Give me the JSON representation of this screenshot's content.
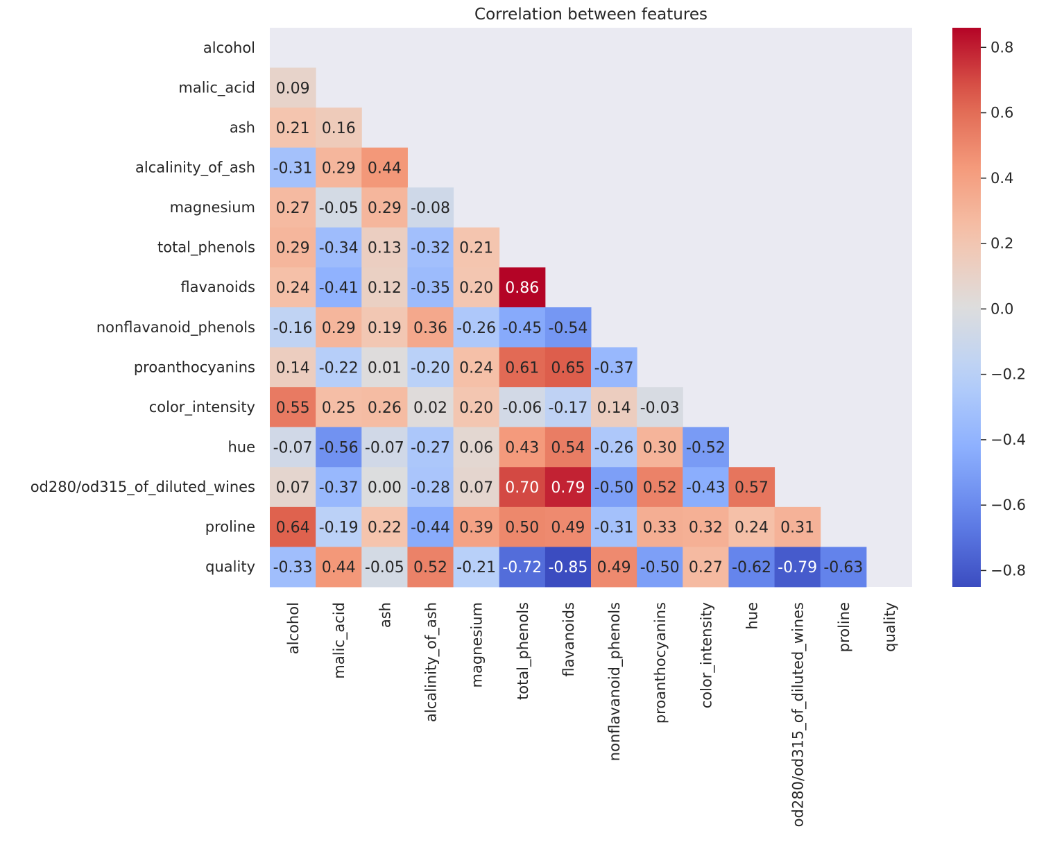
{
  "chart_data": {
    "type": "heatmap",
    "title": "Correlation between features",
    "xlabel": "",
    "ylabel": "",
    "mask": "upper-triangle-including-diagonal",
    "annotated": true,
    "value_format": "2 decimals",
    "colormap": "coolwarm",
    "color_range": [
      -0.85,
      0.86
    ],
    "background_color": "#eaeaf2",
    "colorbar": {
      "placement": "right",
      "ticks": [
        0.8,
        0.6,
        0.4,
        0.2,
        0.0,
        -0.2,
        -0.4,
        -0.6,
        -0.8
      ],
      "tick_labels": [
        "0.8",
        "0.6",
        "0.4",
        "0.2",
        "0.0",
        "−0.2",
        "−0.4",
        "−0.6",
        "−0.8"
      ]
    },
    "labels": [
      "alcohol",
      "malic_acid",
      "ash",
      "alcalinity_of_ash",
      "magnesium",
      "total_phenols",
      "flavanoids",
      "nonflavanoid_phenols",
      "proanthocyanins",
      "color_intensity",
      "hue",
      "od280/od315_of_diluted_wines",
      "proline",
      "quality"
    ],
    "rows": [
      [],
      [
        0.09
      ],
      [
        0.21,
        0.16
      ],
      [
        -0.31,
        0.29,
        0.44
      ],
      [
        0.27,
        -0.05,
        0.29,
        -0.08
      ],
      [
        0.29,
        -0.34,
        0.13,
        -0.32,
        0.21
      ],
      [
        0.24,
        -0.41,
        0.12,
        -0.35,
        0.2,
        0.86
      ],
      [
        -0.16,
        0.29,
        0.19,
        0.36,
        -0.26,
        -0.45,
        -0.54
      ],
      [
        0.14,
        -0.22,
        0.01,
        -0.2,
        0.24,
        0.61,
        0.65,
        -0.37
      ],
      [
        0.55,
        0.25,
        0.26,
        0.02,
        0.2,
        -0.06,
        -0.17,
        0.14,
        -0.03
      ],
      [
        -0.07,
        -0.56,
        -0.07,
        -0.27,
        0.06,
        0.43,
        0.54,
        -0.26,
        0.3,
        -0.52
      ],
      [
        0.07,
        -0.37,
        0.0,
        -0.28,
        0.07,
        0.7,
        0.79,
        -0.5,
        0.52,
        -0.43,
        0.57
      ],
      [
        0.64,
        -0.19,
        0.22,
        -0.44,
        0.39,
        0.5,
        0.49,
        -0.31,
        0.33,
        0.32,
        0.24,
        0.31
      ],
      [
        -0.33,
        0.44,
        -0.05,
        0.52,
        -0.21,
        -0.72,
        -0.85,
        0.49,
        -0.5,
        0.27,
        -0.62,
        -0.79,
        -0.63
      ]
    ]
  }
}
